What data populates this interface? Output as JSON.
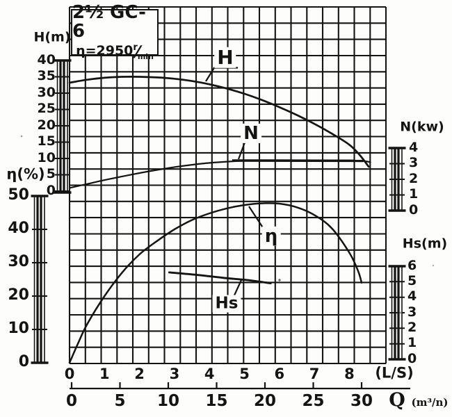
{
  "title_box": {
    "model": "2½ GC-6",
    "speed_eq": "η=2950",
    "speed_unit_num": "r",
    "slash": "⁄",
    "speed_unit_den": "min"
  },
  "axes": {
    "head": {
      "title": "H(m)",
      "ticks": [
        "40",
        "35",
        "30",
        "25",
        "20",
        "15",
        "10",
        "5",
        "0"
      ],
      "range": [
        0,
        40
      ]
    },
    "efficiency": {
      "title": "η(%)",
      "ticks": [
        "50",
        "40",
        "30",
        "20",
        "10",
        "0"
      ],
      "range": [
        0,
        50
      ]
    },
    "power": {
      "title": "N(kw)",
      "ticks": [
        "4",
        "3",
        "2",
        "1",
        "0"
      ],
      "range": [
        0,
        4
      ]
    },
    "suction": {
      "title": "Hs(m)",
      "ticks": [
        "6",
        "5",
        "4",
        "3",
        "2",
        "1",
        "0"
      ],
      "range": [
        0,
        6
      ]
    },
    "flow_ls": {
      "unit": "(L/S)",
      "ticks": [
        "0",
        "1",
        "2",
        "3",
        "4",
        "5",
        "6",
        "7",
        "8"
      ]
    },
    "flow_m3": {
      "symbol": "Q",
      "unit": "(m³/n)",
      "ticks": [
        "0",
        "5",
        "10",
        "15",
        "20",
        "25",
        "30"
      ]
    }
  },
  "curve_labels": {
    "H": "H",
    "N": "N",
    "eta": "η",
    "Hs": "Hs"
  },
  "ink_color": "#141414",
  "paper_color": "#fdfdfb",
  "chart_data": {
    "type": "line",
    "title": "2½ GC-6 pump performance curves at η=2950 r/min",
    "xlabel": "Q",
    "x_units": [
      "L/S",
      "m³/n"
    ],
    "x_range_ls": [
      0,
      8.6
    ],
    "x_range_m3": [
      0,
      30
    ],
    "grid": true,
    "series": [
      {
        "name": "H",
        "ylabel": "H(m)",
        "y_range": [
          0,
          40
        ],
        "x_ls": [
          0,
          0.5,
          1,
          1.5,
          2,
          2.5,
          3,
          3.5,
          4,
          4.5,
          5,
          5.5,
          6,
          6.5,
          7,
          7.5,
          8,
          8.3,
          8.55
        ],
        "y": [
          33.2,
          34.1,
          34.7,
          35,
          35,
          34.8,
          34.4,
          33.7,
          32.7,
          31.4,
          29.8,
          27.9,
          25.7,
          23.3,
          20.6,
          17.6,
          14.2,
          11,
          7.5
        ]
      },
      {
        "name": "N",
        "ylabel": "N(kw)",
        "y_range": [
          0,
          4
        ],
        "x_ls": [
          0,
          0.5,
          1,
          1.5,
          2,
          2.5,
          3,
          3.5,
          4,
          4.5,
          5,
          5.5,
          6,
          6.5,
          7,
          7.5,
          8,
          8.35,
          8.6
        ],
        "y": [
          1.45,
          1.7,
          1.95,
          2.18,
          2.4,
          2.6,
          2.78,
          2.93,
          3.05,
          3.13,
          3.18,
          3.2,
          3.2,
          3.2,
          3.2,
          3.2,
          3.2,
          3.18,
          3.1
        ]
      },
      {
        "name": "η",
        "ylabel": "η(%)",
        "y_range": [
          0,
          50
        ],
        "x_ls": [
          0,
          0.25,
          0.5,
          1,
          1.5,
          2,
          2.5,
          3,
          3.5,
          4,
          4.5,
          5,
          5.5,
          6,
          6.5,
          7,
          7.5,
          8,
          8.25,
          8.35
        ],
        "y": [
          0,
          6,
          11.5,
          20,
          27,
          32.5,
          36.5,
          40,
          42.8,
          44.8,
          46.3,
          47.3,
          47.8,
          47.7,
          46.6,
          44.3,
          40.3,
          33,
          27.5,
          24
        ]
      },
      {
        "name": "Hs",
        "ylabel": "Hs(m)",
        "y_range": [
          0,
          6
        ],
        "x_ls": [
          2.85,
          3.6,
          4.4,
          5.1,
          5.75
        ],
        "y": [
          5.6,
          5.45,
          5.25,
          5.1,
          4.9
        ]
      }
    ]
  }
}
